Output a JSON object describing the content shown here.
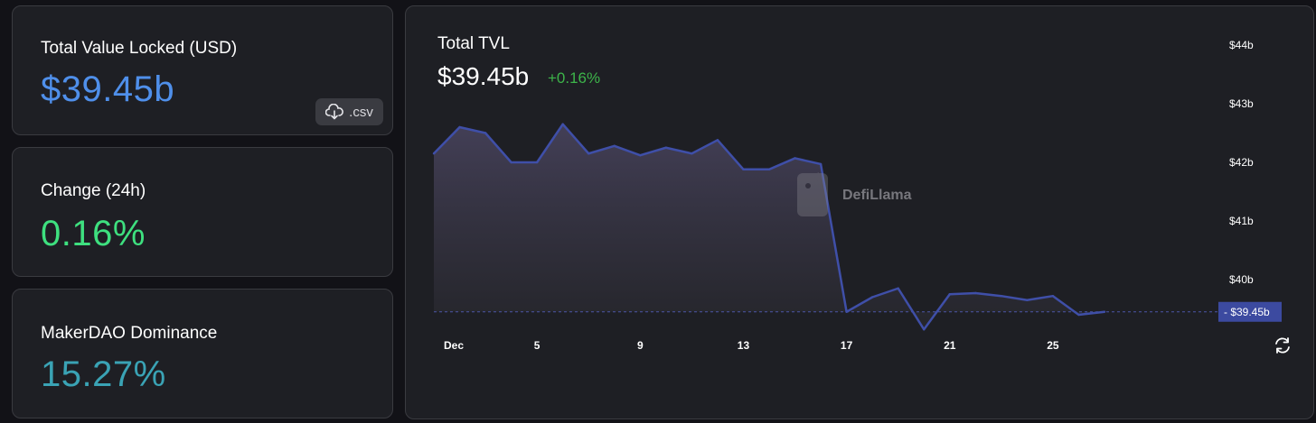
{
  "cards": {
    "tvl": {
      "label": "Total Value Locked (USD)",
      "value": "$39.45b",
      "color": "#4f8fea",
      "csv_label": ".csv"
    },
    "change": {
      "label": "Change (24h)",
      "value": "0.16%",
      "color": "#3ee07f"
    },
    "dominance": {
      "label": "MakerDAO Dominance",
      "value": "15.27%",
      "color": "#3aa3b5"
    }
  },
  "chart": {
    "title": "Total TVL",
    "value": "$39.45b",
    "change": "+0.16%",
    "change_color": "#3db44a",
    "watermark": "DefiLlama",
    "current_label": "$39.45b"
  },
  "chart_data": {
    "type": "area",
    "title": "Total TVL",
    "x": [
      "Dec 1",
      "Dec 2",
      "Dec 3",
      "Dec 4",
      "Dec 5",
      "Dec 6",
      "Dec 7",
      "Dec 8",
      "Dec 9",
      "Dec 10",
      "Dec 11",
      "Dec 12",
      "Dec 13",
      "Dec 14",
      "Dec 15",
      "Dec 16",
      "Dec 17",
      "Dec 18",
      "Dec 19",
      "Dec 20",
      "Dec 21",
      "Dec 22",
      "Dec 23",
      "Dec 24",
      "Dec 25",
      "Dec 26",
      "Dec 27"
    ],
    "values": [
      42.15,
      42.6,
      42.5,
      42.0,
      42.0,
      42.65,
      42.15,
      42.28,
      42.12,
      42.25,
      42.15,
      42.38,
      41.88,
      41.88,
      42.07,
      41.97,
      39.45,
      39.7,
      39.85,
      39.15,
      39.75,
      39.77,
      39.72,
      39.65,
      39.72,
      39.4,
      39.45
    ],
    "ylim": [
      39,
      44
    ],
    "yticks": [
      "$40b",
      "$41b",
      "$42b",
      "$43b",
      "$44b"
    ],
    "ytick_values": [
      40,
      41,
      42,
      43,
      44
    ],
    "xticks": [
      "Dec",
      "5",
      "9",
      "13",
      "17",
      "21",
      "25"
    ],
    "xtick_index": [
      0,
      4,
      8,
      12,
      16,
      20,
      24
    ],
    "line_color": "#3f4fa8",
    "fill_color": "#3c3a4a"
  }
}
